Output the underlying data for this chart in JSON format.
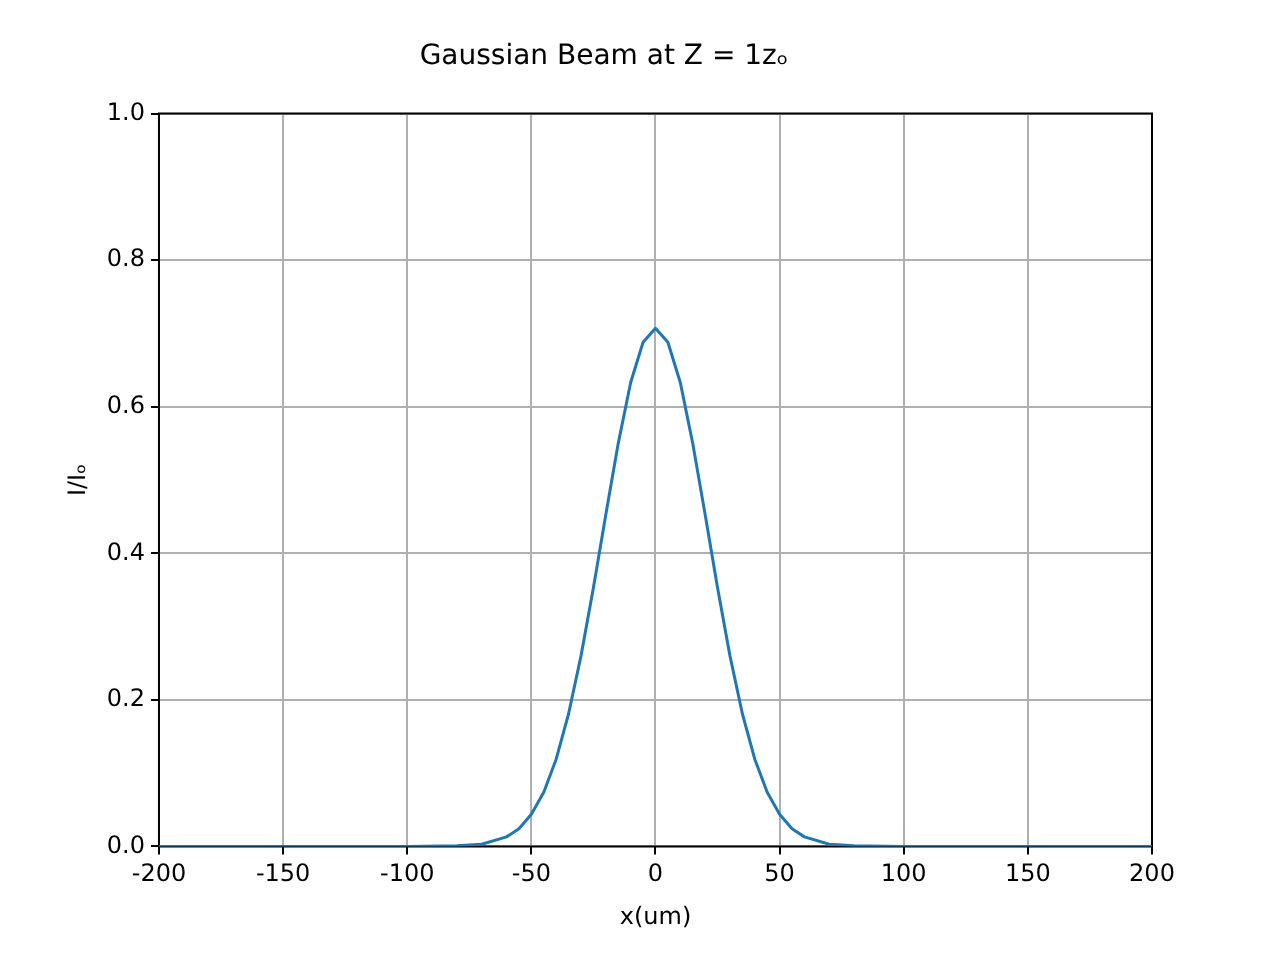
{
  "chart_data": {
    "type": "line",
    "title": "Gaussian Beam at Z = 1zₒ",
    "xlabel": "x(um)",
    "ylabel": "I/Iₒ",
    "x": [
      -200,
      -150,
      -100,
      -80,
      -70,
      -60,
      -55,
      -50,
      -45,
      -40,
      -35,
      -30,
      -25,
      -20,
      -15,
      -10,
      -5,
      0,
      5,
      10,
      15,
      20,
      25,
      30,
      35,
      40,
      45,
      50,
      55,
      60,
      70,
      80,
      100,
      150,
      200
    ],
    "series": [
      {
        "color": "#1f77b4",
        "values": [
          0,
          0,
          0,
          0.001,
          0.003,
          0.013,
          0.024,
          0.044,
          0.074,
          0.119,
          0.181,
          0.26,
          0.353,
          0.453,
          0.55,
          0.633,
          0.688,
          0.707,
          0.688,
          0.633,
          0.55,
          0.453,
          0.353,
          0.26,
          0.181,
          0.119,
          0.074,
          0.044,
          0.024,
          0.013,
          0.003,
          0.001,
          0,
          0,
          0
        ]
      }
    ],
    "xlim": [
      -200,
      200
    ],
    "ylim": [
      0,
      1
    ],
    "xticks": [
      -200,
      -150,
      -100,
      -50,
      0,
      50,
      100,
      150,
      200
    ],
    "yticks": [
      {
        "value": 0,
        "label": "0.0"
      },
      {
        "value": 0.2,
        "label": "0.2"
      },
      {
        "value": 0.4,
        "label": "0.4"
      },
      {
        "value": 0.6,
        "label": "0.6"
      },
      {
        "value": 0.8,
        "label": "0.8"
      },
      {
        "value": 1,
        "label": "1.0"
      }
    ],
    "grid": true
  }
}
